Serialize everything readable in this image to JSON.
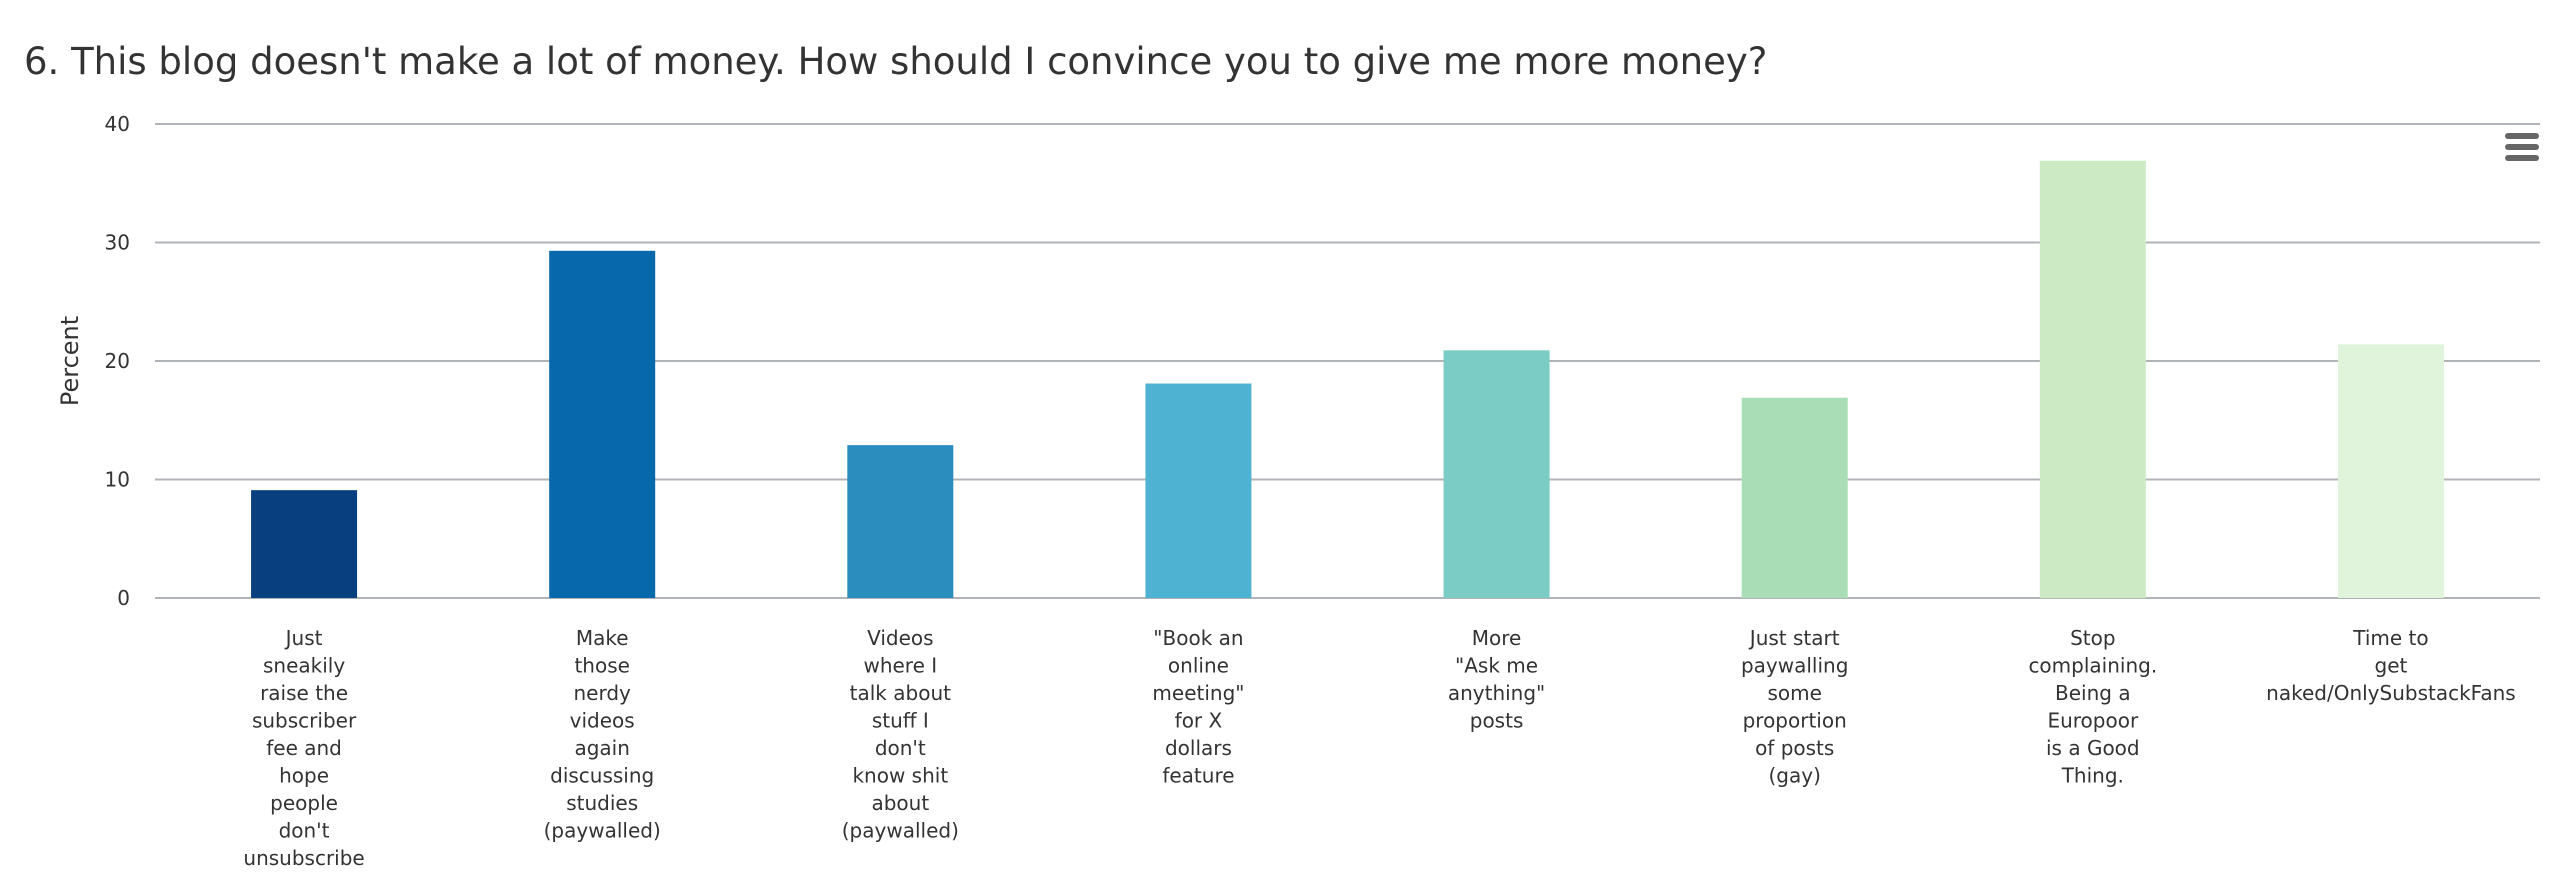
{
  "chart_data": {
    "type": "bar",
    "title": "6. This blog doesn't make a lot of money. How should I convince you to give me more money?",
    "xlabel": "",
    "ylabel": "Percent",
    "ylim": [
      0,
      40
    ],
    "yticks": [
      "0",
      "10",
      "20",
      "30",
      "40"
    ],
    "grid": true,
    "legend": "none",
    "categories": [
      [
        "Just",
        "sneakily",
        "raise the",
        "subscriber",
        "fee and",
        "hope",
        "people",
        "don't",
        "unsubscribe"
      ],
      [
        "Make",
        "those",
        "nerdy",
        "videos",
        "again",
        "discussing",
        "studies",
        "(paywalled)"
      ],
      [
        "Videos",
        "where I",
        "talk about",
        "stuff I",
        "don't",
        "know shit",
        "about",
        "(paywalled)"
      ],
      [
        "\"Book an",
        "online",
        "meeting\"",
        "for X",
        "dollars",
        "feature"
      ],
      [
        "More",
        "\"Ask me",
        "anything\"",
        "posts"
      ],
      [
        "Just start",
        "paywalling",
        "some",
        "proportion",
        "of posts",
        "(gay)"
      ],
      [
        "Stop",
        "complaining.",
        "Being a",
        "Europoor",
        "is a Good",
        "Thing."
      ],
      [
        "Time to",
        "get",
        "naked/OnlySubstackFans"
      ]
    ],
    "values": [
      9.1,
      29.3,
      12.9,
      18.1,
      20.9,
      16.9,
      36.9,
      21.4
    ],
    "colors": [
      "#08407f",
      "#0868ac",
      "#2b8cbe",
      "#4eb3d3",
      "#7bccc4",
      "#a8ddb5",
      "#ccebc5",
      "#e0f3db"
    ]
  },
  "menu_icon": "hamburger-menu-icon"
}
